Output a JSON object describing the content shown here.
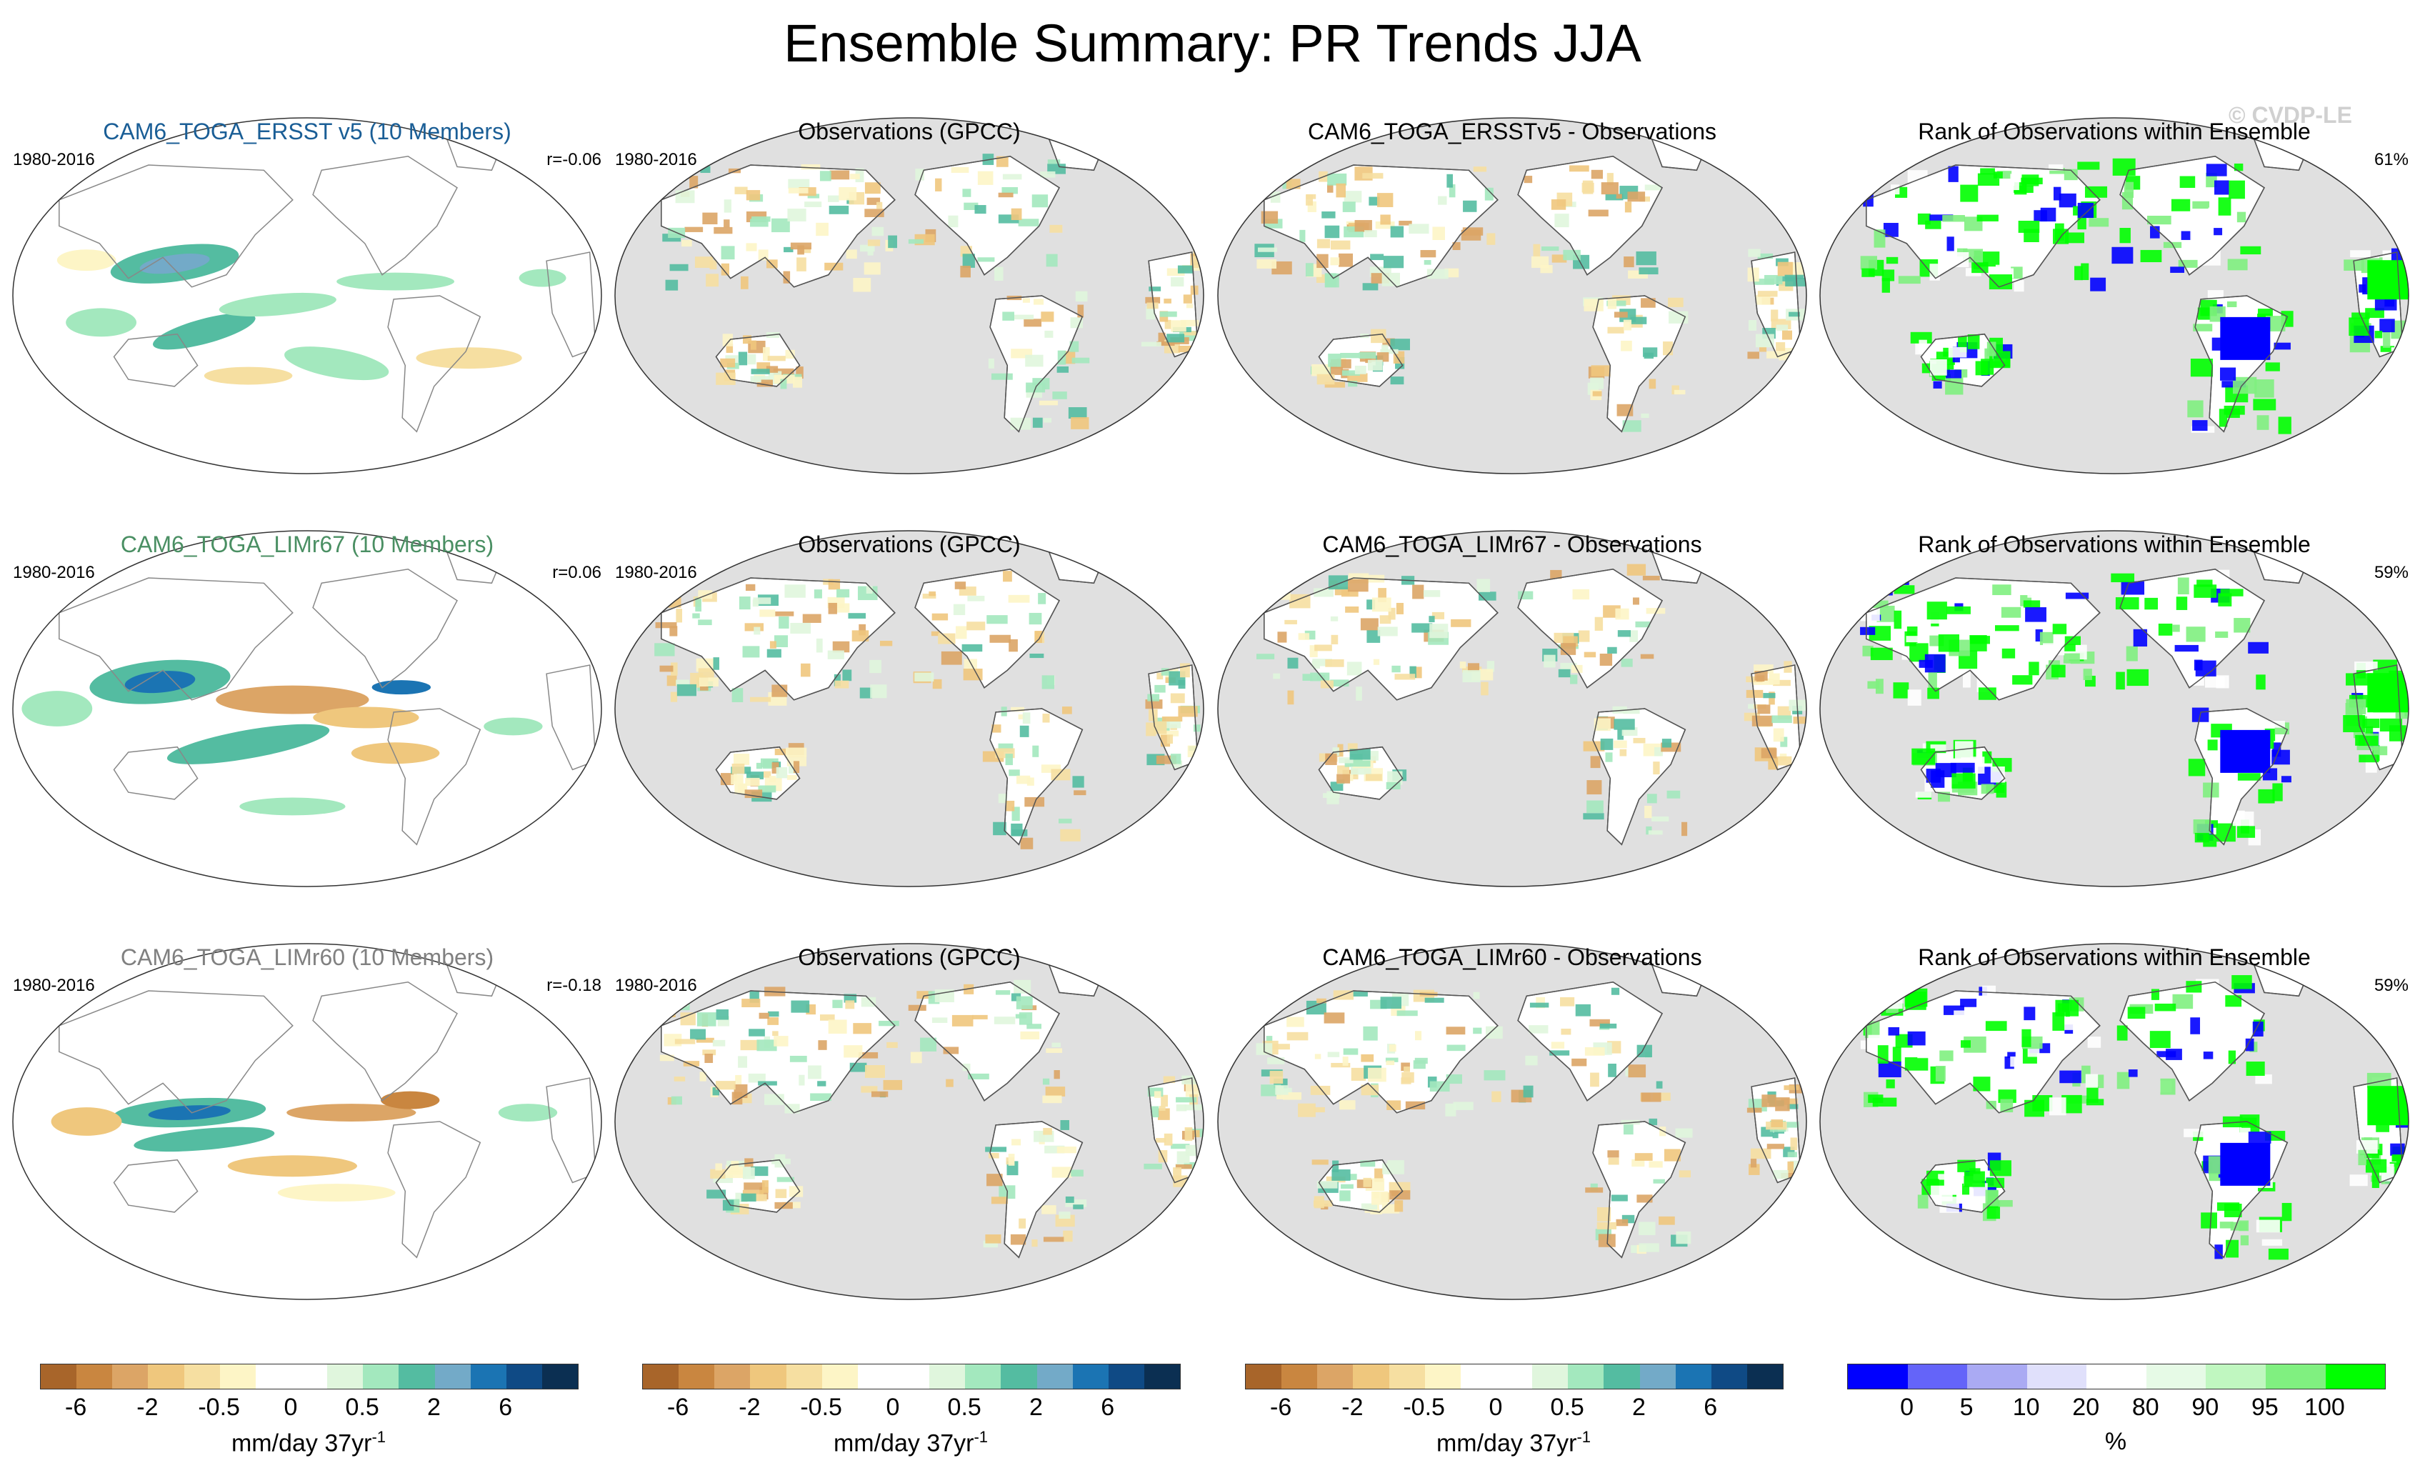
{
  "title": "Ensemble Summary: PR Trends JJA",
  "watermark": "© CVDP-LE",
  "chart_data": {
    "type": "map",
    "rows": [
      {
        "panels": [
          {
            "title": "CAM6_TOGA_ERSST v5 (10 Members)",
            "period": "1980-2016",
            "stat": "r=-0.06",
            "title_color": "#1a5e96",
            "kind": "model"
          },
          {
            "title": "Observations (GPCC)",
            "period": "1980-2016",
            "stat": "",
            "title_color": "#000000",
            "kind": "obs"
          },
          {
            "title": "CAM6_TOGA_ERSSTv5 - Observations",
            "period": "",
            "stat": "",
            "title_color": "#000000",
            "kind": "diff"
          },
          {
            "title": "Rank of Observations within Ensemble",
            "period": "",
            "stat": "61%",
            "title_color": "#000000",
            "kind": "rank"
          }
        ]
      },
      {
        "panels": [
          {
            "title": "CAM6_TOGA_LIMr67 (10 Members)",
            "period": "1980-2016",
            "stat": "r=0.06",
            "title_color": "#4a8f63",
            "kind": "model"
          },
          {
            "title": "Observations (GPCC)",
            "period": "1980-2016",
            "stat": "",
            "title_color": "#000000",
            "kind": "obs"
          },
          {
            "title": "CAM6_TOGA_LIMr67 - Observations",
            "period": "",
            "stat": "",
            "title_color": "#000000",
            "kind": "diff"
          },
          {
            "title": "Rank of Observations within Ensemble",
            "period": "",
            "stat": "59%",
            "title_color": "#000000",
            "kind": "rank"
          }
        ]
      },
      {
        "panels": [
          {
            "title": "CAM6_TOGA_LIMr60 (10 Members)",
            "period": "1980-2016",
            "stat": "r=-0.18",
            "title_color": "#808080",
            "kind": "model"
          },
          {
            "title": "Observations (GPCC)",
            "period": "1980-2016",
            "stat": "",
            "title_color": "#000000",
            "kind": "obs"
          },
          {
            "title": "CAM6_TOGA_LIMr60 - Observations",
            "period": "",
            "stat": "",
            "title_color": "#000000",
            "kind": "diff"
          },
          {
            "title": "Rank of Observations within Ensemble",
            "period": "",
            "stat": "59%",
            "title_color": "#000000",
            "kind": "rank"
          }
        ]
      }
    ],
    "colorbars": [
      {
        "units": "mm/day 37yr",
        "units_sup": "-1",
        "colors": [
          "#a8652a",
          "#c98640",
          "#dca566",
          "#efc77d",
          "#f6dfa1",
          "#fdf5c6",
          "#ffffff",
          "#ffffff",
          "#e0f6dd",
          "#a3e8be",
          "#54bca1",
          "#73aac8",
          "#1b74b3",
          "#0f4a85",
          "#0b2f52"
        ],
        "ticks": [
          {
            "label": "-6",
            "after_box": 1
          },
          {
            "label": "-2",
            "after_box": 3
          },
          {
            "label": "-0.5",
            "after_box": 5
          },
          {
            "label": "0",
            "after_box": 7
          },
          {
            "label": "0.5",
            "after_box": 9
          },
          {
            "label": "2",
            "after_box": 11
          },
          {
            "label": "6",
            "after_box": 13
          }
        ]
      },
      {
        "units": "%",
        "units_sup": "",
        "colors": [
          "#0000ff",
          "#6464f9",
          "#aaaaf3",
          "#e0e0fb",
          "#ffffff",
          "#e6fae6",
          "#c0f7c0",
          "#80f080",
          "#00ff00"
        ],
        "ticks": [
          {
            "label": "0",
            "after_box": 1
          },
          {
            "label": "5",
            "after_box": 2
          },
          {
            "label": "10",
            "after_box": 3
          },
          {
            "label": "20",
            "after_box": 4
          },
          {
            "label": "80",
            "after_box": 5
          },
          {
            "label": "90",
            "after_box": 6
          },
          {
            "label": "95",
            "after_box": 7
          },
          {
            "label": "100",
            "after_box": 8
          }
        ]
      }
    ]
  }
}
